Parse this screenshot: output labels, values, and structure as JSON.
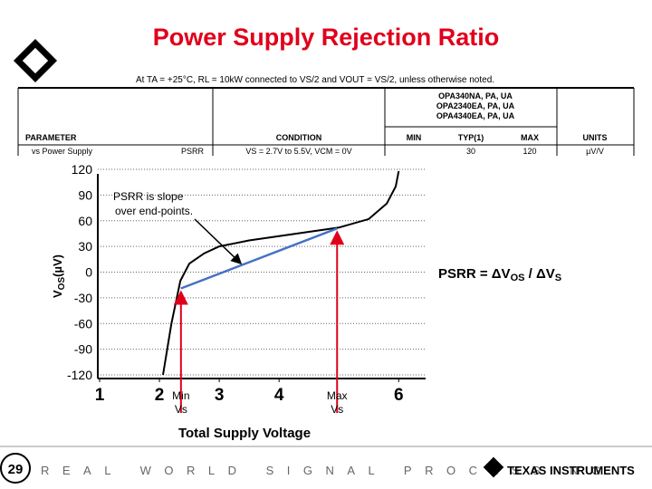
{
  "title": "Power Supply Rejection Ratio",
  "subtitle": "At TA = +25°C, RL = 10kW connected to VS/2 and VOUT = VS/2, unless otherwise noted.",
  "table": {
    "models": [
      "OPA340NA, PA, UA",
      "OPA2340EA, PA, UA",
      "OPA4340EA, PA, UA"
    ],
    "header": [
      "PARAMETER",
      "CONDITION",
      "MIN",
      "TYP(1)",
      "MAX",
      "UNITS"
    ],
    "row": [
      "vs Power Supply",
      "PSRR",
      "VS = 2.7V to 5.5V, VCM = 0V",
      "30",
      "120",
      "µV/V"
    ]
  },
  "footer": {
    "page": "29",
    "tagline": "REAL WORLD SIGNAL PROCESSING",
    "brand": "TEXAS INSTRUMENTS"
  },
  "chart_data": {
    "type": "line",
    "xlabel": "Total Supply Voltage",
    "ylabel": [
      "V",
      "OS",
      "(µV)"
    ],
    "xlim": [
      1,
      6.45
    ],
    "xticks": [
      1,
      2,
      3,
      4,
      6
    ],
    "ylim": [
      -120,
      120
    ],
    "yticks": [
      120,
      90,
      60,
      30,
      0,
      -30,
      -60,
      -90,
      -120
    ],
    "grid": true,
    "series": [
      {
        "color": "#000000",
        "x": [
          2.06,
          2.2,
          2.35,
          2.5,
          2.75,
          3.0,
          3.5,
          4.0,
          4.5,
          5.0,
          5.5,
          5.8,
          5.95,
          6.0
        ],
        "values": [
          -120,
          -60,
          -10,
          10,
          22,
          30,
          37,
          42,
          47,
          52,
          62,
          80,
          100,
          118
        ]
      },
      {
        "color": "#4472c4",
        "x": [
          2.36,
          4.97
        ],
        "values": [
          -19,
          51
        ]
      }
    ],
    "annotations": {
      "slope_note": [
        "PSRR is slope",
        "over end-points."
      ],
      "min_label": [
        "Min",
        "Vs"
      ],
      "max_label": [
        "Max",
        "Vs"
      ],
      "formula": [
        "PSRR = ΔV",
        "OS",
        " / ΔV",
        "S"
      ]
    }
  }
}
